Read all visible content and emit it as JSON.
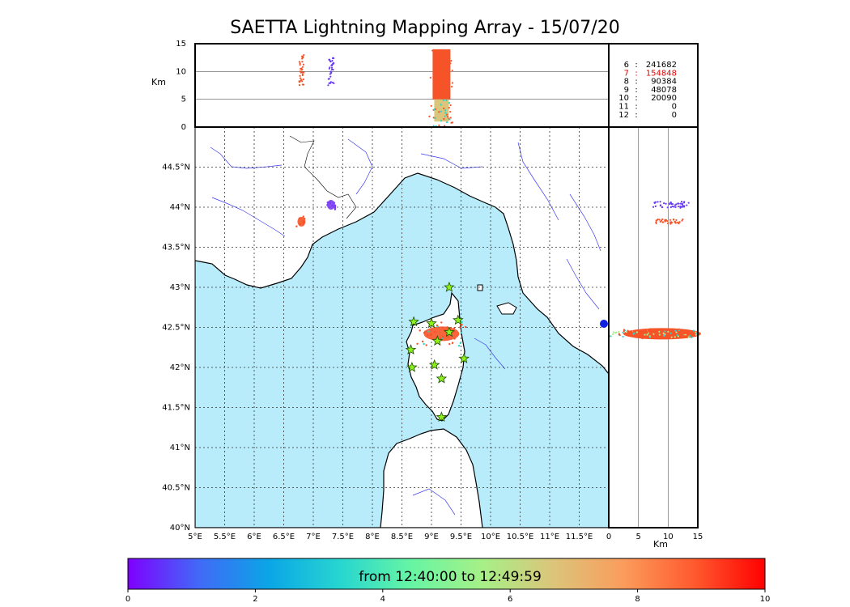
{
  "chart_data": {
    "type": "scatter",
    "title": "SAETTA Lightning Mapping Array - 15/07/20",
    "map": {
      "lon_ticks": [
        "5°E",
        "5.5°E",
        "6°E",
        "6.5°E",
        "7°E",
        "7.5°E",
        "8°E",
        "8.5°E",
        "9°E",
        "9.5°E",
        "10°E",
        "10.5°E",
        "11°E",
        "11.5°E"
      ],
      "lat_ticks": [
        "40°N",
        "40.5°N",
        "41°N",
        "41.5°N",
        "42°N",
        "42.5°N",
        "43°N",
        "43.5°N",
        "44°N",
        "44.5°N"
      ],
      "lon_range": [
        5,
        12
      ],
      "lat_range": [
        40,
        45
      ],
      "grid": true,
      "sea_color": "#b8ecfb",
      "stations": [
        [
          9.3,
          43.0
        ],
        [
          8.7,
          42.57
        ],
        [
          9.0,
          42.55
        ],
        [
          9.45,
          42.59
        ],
        [
          9.3,
          42.44
        ],
        [
          9.1,
          42.33
        ],
        [
          8.65,
          42.22
        ],
        [
          9.55,
          42.11
        ],
        [
          9.05,
          42.03
        ],
        [
          8.67,
          42.0
        ],
        [
          9.17,
          41.86
        ],
        [
          9.17,
          41.38
        ]
      ],
      "clusters": [
        {
          "lon": 6.8,
          "lat": 43.82,
          "color": "#f65428"
        },
        {
          "lon": 7.3,
          "lat": 44.03,
          "color": "#7a3cf2"
        },
        {
          "lon": 9.17,
          "lat": 42.42,
          "color": "#f65428"
        }
      ]
    },
    "altitude_top": {
      "ylabel": "Km",
      "yticks": [
        "0",
        "5",
        "10",
        "15"
      ],
      "ylim": [
        0,
        15
      ]
    },
    "altitude_side": {
      "xlabel": "Km",
      "xticks": [
        "0",
        "5",
        "10",
        "15"
      ],
      "xlim": [
        0,
        15
      ]
    },
    "station_counts": [
      {
        "stations": "6",
        "count": "241682",
        "color": "#000000"
      },
      {
        "stations": "7",
        "count": "154848",
        "color": "#e00000"
      },
      {
        "stations": "8",
        "count": "90384",
        "color": "#000000"
      },
      {
        "stations": "9",
        "count": "48078",
        "color": "#000000"
      },
      {
        "stations": "10",
        "count": "20090",
        "color": "#000000"
      },
      {
        "stations": "11",
        "count": "0",
        "color": "#000000"
      },
      {
        "stations": "12",
        "count": "0",
        "color": "#000000"
      }
    ],
    "colorbar": {
      "label": "from 12:40:00 to 12:49:59",
      "ticks": [
        "0",
        "2",
        "4",
        "6",
        "8",
        "10"
      ],
      "range": [
        0,
        10
      ],
      "colors": [
        "#7f00ff",
        "#4169f7",
        "#0aa6e6",
        "#27d6d0",
        "#66f5a4",
        "#a6f087",
        "#dbc57a",
        "#fb9c5c",
        "#ff5a2e",
        "#ff0000"
      ]
    }
  }
}
